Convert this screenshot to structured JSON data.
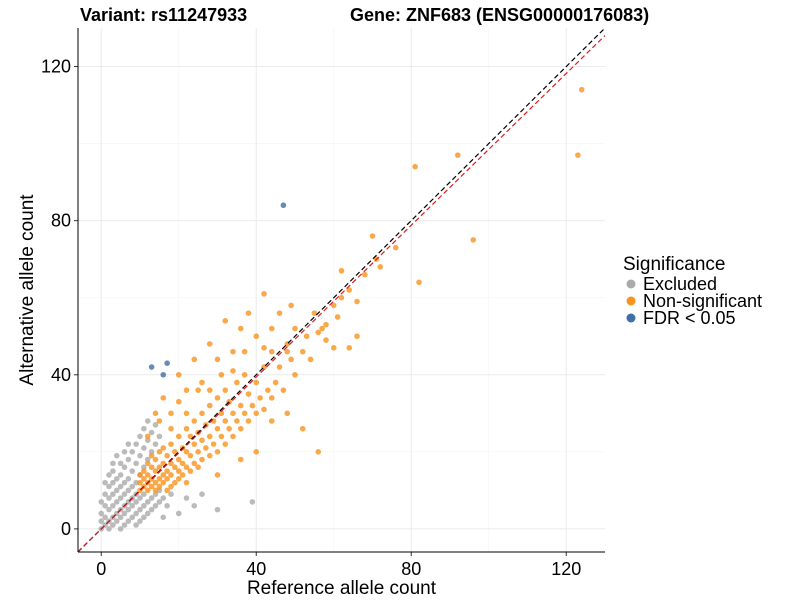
{
  "chart_data": {
    "type": "scatter",
    "title_left": "Variant: rs11247933",
    "title_right": "Gene: ZNF683 (ENSG00000176083)",
    "xlabel": "Reference allele count",
    "ylabel": "Alternative allele count",
    "xlim": [
      -6,
      130
    ],
    "ylim": [
      -6,
      130
    ],
    "x_ticks": [
      0,
      40,
      80,
      120
    ],
    "y_ticks": [
      0,
      40,
      80,
      120
    ],
    "grid": true,
    "legend": {
      "title": "Significance",
      "position": "right",
      "entries": [
        {
          "label": "Excluded",
          "color": "#aaaaaa"
        },
        {
          "label": "Non-significant",
          "color": "#f7941d"
        },
        {
          "label": "FDR < 0.05",
          "color": "#3f6fa8"
        }
      ]
    },
    "reference_lines": [
      {
        "type": "identity",
        "slope": 1,
        "intercept": 0,
        "color": "#000000",
        "dash": "dashed"
      },
      {
        "type": "fit",
        "slope": 0.985,
        "intercept": 0,
        "color": "#e31a1c",
        "dash": "dashed"
      }
    ],
    "series": [
      {
        "name": "Excluded",
        "color": "#aaaaaa",
        "points": [
          [
            0,
            0
          ],
          [
            0,
            2
          ],
          [
            0,
            4
          ],
          [
            1,
            1
          ],
          [
            1,
            3
          ],
          [
            1,
            6
          ],
          [
            2,
            0
          ],
          [
            2,
            2
          ],
          [
            2,
            5
          ],
          [
            2,
            8
          ],
          [
            3,
            1
          ],
          [
            3,
            3
          ],
          [
            3,
            6
          ],
          [
            3,
            9
          ],
          [
            3,
            12
          ],
          [
            4,
            2
          ],
          [
            4,
            4
          ],
          [
            4,
            7
          ],
          [
            4,
            10
          ],
          [
            5,
            0
          ],
          [
            5,
            3
          ],
          [
            5,
            5
          ],
          [
            5,
            8
          ],
          [
            5,
            11
          ],
          [
            5,
            14
          ],
          [
            6,
            1
          ],
          [
            6,
            4
          ],
          [
            6,
            6
          ],
          [
            6,
            9
          ],
          [
            6,
            12
          ],
          [
            6,
            16
          ],
          [
            7,
            2
          ],
          [
            7,
            5
          ],
          [
            7,
            7
          ],
          [
            7,
            10
          ],
          [
            7,
            13
          ],
          [
            7,
            18
          ],
          [
            8,
            3
          ],
          [
            8,
            6
          ],
          [
            8,
            8
          ],
          [
            8,
            11
          ],
          [
            8,
            15
          ],
          [
            8,
            20
          ],
          [
            9,
            1
          ],
          [
            9,
            4
          ],
          [
            9,
            7
          ],
          [
            9,
            9
          ],
          [
            9,
            12
          ],
          [
            9,
            17
          ],
          [
            9,
            22
          ],
          [
            10,
            2
          ],
          [
            10,
            5
          ],
          [
            10,
            8
          ],
          [
            10,
            14
          ],
          [
            10,
            19
          ],
          [
            10,
            24
          ],
          [
            11,
            3
          ],
          [
            11,
            6
          ],
          [
            11,
            9
          ],
          [
            11,
            16
          ],
          [
            11,
            21
          ],
          [
            11,
            26
          ],
          [
            12,
            4
          ],
          [
            12,
            7
          ],
          [
            12,
            18
          ],
          [
            12,
            23
          ],
          [
            12,
            28
          ],
          [
            13,
            5
          ],
          [
            13,
            8
          ],
          [
            13,
            20
          ],
          [
            13,
            25
          ],
          [
            14,
            6
          ],
          [
            14,
            9
          ],
          [
            14,
            22
          ],
          [
            14,
            27
          ],
          [
            15,
            7
          ],
          [
            15,
            10
          ],
          [
            15,
            24
          ],
          [
            16,
            8
          ],
          [
            16,
            3
          ],
          [
            17,
            6
          ],
          [
            18,
            9
          ],
          [
            20,
            4
          ],
          [
            22,
            8
          ],
          [
            24,
            6
          ],
          [
            26,
            9
          ],
          [
            30,
            5
          ],
          [
            39,
            7
          ],
          [
            2,
            11
          ],
          [
            3,
            15
          ],
          [
            4,
            13
          ],
          [
            1,
            9
          ],
          [
            0,
            7
          ],
          [
            1,
            12
          ],
          [
            2,
            14
          ],
          [
            3,
            17
          ],
          [
            4,
            19
          ],
          [
            5,
            17
          ],
          [
            6,
            20
          ],
          [
            7,
            22
          ]
        ]
      },
      {
        "name": "Non-significant",
        "color": "#f7941d",
        "points": [
          [
            10,
            10
          ],
          [
            10,
            12
          ],
          [
            10,
            14
          ],
          [
            11,
            11
          ],
          [
            11,
            13
          ],
          [
            11,
            15
          ],
          [
            12,
            10
          ],
          [
            12,
            12
          ],
          [
            12,
            14
          ],
          [
            12,
            17
          ],
          [
            13,
            11
          ],
          [
            13,
            13
          ],
          [
            13,
            16
          ],
          [
            13,
            19
          ],
          [
            14,
            10
          ],
          [
            14,
            12
          ],
          [
            14,
            15
          ],
          [
            14,
            18
          ],
          [
            15,
            11
          ],
          [
            15,
            13
          ],
          [
            15,
            16
          ],
          [
            15,
            20
          ],
          [
            16,
            12
          ],
          [
            16,
            14
          ],
          [
            16,
            17
          ],
          [
            16,
            21
          ],
          [
            17,
            10
          ],
          [
            17,
            13
          ],
          [
            17,
            15
          ],
          [
            17,
            19
          ],
          [
            18,
            11
          ],
          [
            18,
            14
          ],
          [
            18,
            17
          ],
          [
            18,
            22
          ],
          [
            19,
            12
          ],
          [
            19,
            16
          ],
          [
            19,
            20
          ],
          [
            20,
            13
          ],
          [
            20,
            15
          ],
          [
            20,
            18
          ],
          [
            20,
            24
          ],
          [
            21,
            14
          ],
          [
            21,
            17
          ],
          [
            21,
            21
          ],
          [
            22,
            12
          ],
          [
            22,
            16
          ],
          [
            22,
            20
          ],
          [
            22,
            26
          ],
          [
            23,
            15
          ],
          [
            23,
            19
          ],
          [
            23,
            24
          ],
          [
            24,
            17
          ],
          [
            24,
            22
          ],
          [
            24,
            28
          ],
          [
            25,
            16
          ],
          [
            25,
            20
          ],
          [
            25,
            25
          ],
          [
            26,
            18
          ],
          [
            26,
            23
          ],
          [
            26,
            30
          ],
          [
            27,
            21
          ],
          [
            27,
            27
          ],
          [
            28,
            19
          ],
          [
            28,
            24
          ],
          [
            28,
            32
          ],
          [
            29,
            22
          ],
          [
            29,
            28
          ],
          [
            30,
            20
          ],
          [
            30,
            26
          ],
          [
            30,
            34
          ],
          [
            31,
            24
          ],
          [
            31,
            30
          ],
          [
            32,
            22
          ],
          [
            32,
            28
          ],
          [
            32,
            36
          ],
          [
            33,
            26
          ],
          [
            33,
            33
          ],
          [
            34,
            24
          ],
          [
            34,
            30
          ],
          [
            35,
            28
          ],
          [
            35,
            38
          ],
          [
            36,
            26
          ],
          [
            36,
            32
          ],
          [
            37,
            30
          ],
          [
            37,
            40
          ],
          [
            38,
            28
          ],
          [
            38,
            35
          ],
          [
            39,
            32
          ],
          [
            40,
            30
          ],
          [
            40,
            38
          ],
          [
            41,
            34
          ],
          [
            42,
            31
          ],
          [
            42,
            42
          ],
          [
            43,
            36
          ],
          [
            44,
            34
          ],
          [
            44,
            46
          ],
          [
            45,
            38
          ],
          [
            46,
            42
          ],
          [
            47,
            36
          ],
          [
            48,
            48
          ],
          [
            49,
            44
          ],
          [
            50,
            40
          ],
          [
            50,
            52
          ],
          [
            52,
            46
          ],
          [
            53,
            50
          ],
          [
            54,
            44
          ],
          [
            55,
            56
          ],
          [
            56,
            51
          ],
          [
            57,
            52
          ],
          [
            58,
            49
          ],
          [
            60,
            58
          ],
          [
            61,
            55
          ],
          [
            62,
            60
          ],
          [
            64,
            62
          ],
          [
            66,
            59
          ],
          [
            68,
            66
          ],
          [
            70,
            76
          ],
          [
            72,
            68
          ],
          [
            76,
            73
          ],
          [
            81,
            94
          ],
          [
            82,
            64
          ],
          [
            92,
            97
          ],
          [
            96,
            75
          ],
          [
            123,
            97
          ],
          [
            124,
            114
          ],
          [
            14,
            30
          ],
          [
            16,
            34
          ],
          [
            18,
            30
          ],
          [
            20,
            40
          ],
          [
            22,
            36
          ],
          [
            24,
            44
          ],
          [
            26,
            38
          ],
          [
            28,
            48
          ],
          [
            30,
            44
          ],
          [
            32,
            54
          ],
          [
            34,
            46
          ],
          [
            36,
            52
          ],
          [
            38,
            56
          ],
          [
            40,
            50
          ],
          [
            42,
            61
          ],
          [
            44,
            52
          ],
          [
            46,
            56
          ],
          [
            48,
            46
          ],
          [
            52,
            26
          ],
          [
            56,
            20
          ],
          [
            60,
            47
          ],
          [
            64,
            47
          ],
          [
            40,
            20
          ],
          [
            36,
            18
          ],
          [
            30,
            14
          ],
          [
            44,
            28
          ],
          [
            48,
            30
          ],
          [
            12,
            24
          ],
          [
            15,
            28
          ],
          [
            18,
            26
          ],
          [
            20,
            33
          ],
          [
            22,
            30
          ],
          [
            25,
            36
          ],
          [
            28,
            36
          ],
          [
            31,
            40
          ],
          [
            34,
            41
          ],
          [
            37,
            46
          ],
          [
            42,
            47
          ],
          [
            49,
            58
          ],
          [
            58,
            53
          ],
          [
            62,
            67
          ],
          [
            66,
            50
          ],
          [
            71,
            70
          ]
        ]
      },
      {
        "name": "FDR < 0.05",
        "color": "#3f6fa8",
        "points": [
          [
            13,
            42
          ],
          [
            16,
            40
          ],
          [
            17,
            43
          ],
          [
            47,
            84
          ]
        ]
      }
    ]
  }
}
